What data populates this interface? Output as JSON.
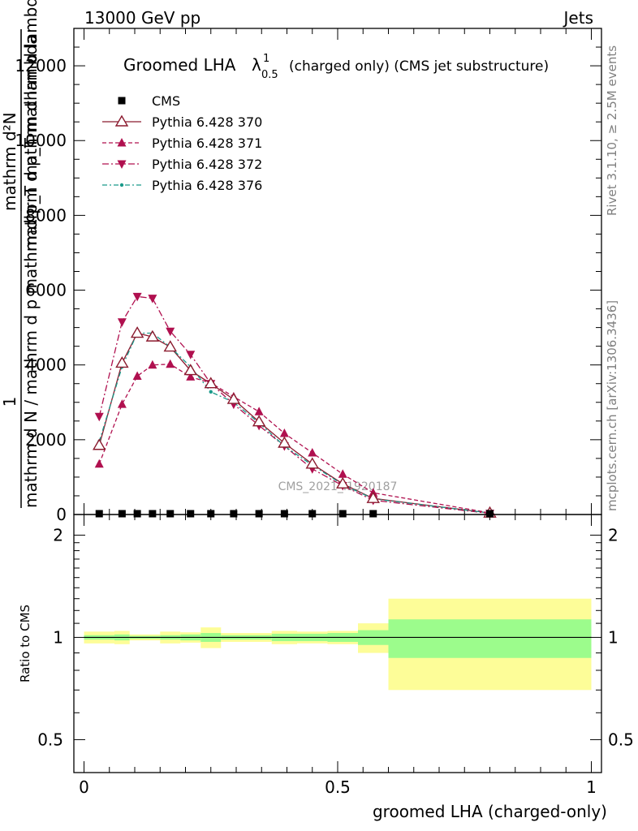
{
  "header": {
    "left": "13000 GeV pp",
    "right": "Jets"
  },
  "side_labels": {
    "top": "Rivet 3.1.10, ≥ 2.5M events",
    "bottom": "mcplots.cern.ch [arXiv:1306.3436]"
  },
  "title": {
    "main": "Groomed LHA",
    "symbol": "λ",
    "sup": "1",
    "sub": "0.5",
    "rest": "(charged only) (CMS jet substructure)"
  },
  "watermark": "CMS_2021_I1920187",
  "ylabel_main": {
    "numerator": "1",
    "denominator": "mathrm d N / mathrm d p mathrmd p_T mathrm d lambda",
    "frac_numerator": "mathrm d²N",
    "frac_denominator": "mathrm d p_T mathrm d lambda"
  },
  "ylabel_ratio": "Ratio to CMS",
  "xlabel": "groomed LHA (charged-only)",
  "colors": {
    "cms": "#000000",
    "p370": "#8b1a2e",
    "p371": "#b0104f",
    "p372": "#b0104f",
    "p376": "#1a9a8a",
    "band_inner": "#9cfc8c",
    "band_outer": "#fdfd98"
  },
  "chart_data": [
    {
      "type": "line",
      "panel": "main",
      "xlim": [
        -0.02,
        1.02
      ],
      "ylim": [
        0,
        13000
      ],
      "yticks": [
        0,
        2000,
        4000,
        6000,
        8000,
        10000,
        12000
      ],
      "ytick_labels": [
        "0",
        "2000",
        "4000",
        "6000",
        "8000",
        "10000",
        "12000"
      ],
      "legend_position": "top-left",
      "series": [
        {
          "name": "CMS",
          "marker": "square",
          "x": [
            0.03,
            0.075,
            0.105,
            0.135,
            0.17,
            0.21,
            0.25,
            0.295,
            0.345,
            0.395,
            0.45,
            0.51,
            0.57,
            0.8
          ],
          "y": [
            0,
            0,
            0,
            0,
            0,
            0,
            0,
            0,
            0,
            0,
            0,
            0,
            0,
            0
          ]
        },
        {
          "name": "Pythia 6.428 370",
          "marker": "open-triangle-up",
          "x": [
            0.03,
            0.075,
            0.105,
            0.135,
            0.17,
            0.21,
            0.25,
            0.295,
            0.345,
            0.395,
            0.45,
            0.51,
            0.57,
            0.8
          ],
          "y": [
            1850,
            4050,
            4850,
            4750,
            4480,
            3850,
            3500,
            3080,
            2480,
            1910,
            1350,
            820,
            430,
            40
          ]
        },
        {
          "name": "Pythia 6.428 371",
          "marker": "filled-triangle-up",
          "x": [
            0.03,
            0.075,
            0.105,
            0.135,
            0.17,
            0.21,
            0.25,
            0.295,
            0.345,
            0.395,
            0.45,
            0.51,
            0.57,
            0.8
          ],
          "y": [
            1350,
            2950,
            3700,
            4000,
            4020,
            3680,
            3520,
            3150,
            2750,
            2170,
            1650,
            1080,
            580,
            45
          ]
        },
        {
          "name": "Pythia 6.428 372",
          "marker": "filled-triangle-down",
          "x": [
            0.03,
            0.075,
            0.105,
            0.135,
            0.17,
            0.21,
            0.25,
            0.295,
            0.345,
            0.395,
            0.45,
            0.51,
            0.57,
            0.8
          ],
          "y": [
            2620,
            5150,
            5830,
            5780,
            4900,
            4280,
            3500,
            2950,
            2380,
            1830,
            1220,
            770,
            380,
            30
          ]
        },
        {
          "name": "Pythia 6.428 376",
          "marker": "small-dot",
          "x": [
            0.03,
            0.075,
            0.105,
            0.135,
            0.17,
            0.21,
            0.25,
            0.295,
            0.345,
            0.395,
            0.45,
            0.51,
            0.57,
            0.8
          ],
          "y": [
            1950,
            3950,
            4850,
            4850,
            4480,
            3950,
            3280,
            3000,
            2450,
            1830,
            1320,
            800,
            420,
            40
          ]
        }
      ]
    },
    {
      "type": "area",
      "panel": "ratio",
      "xlim": [
        -0.02,
        1.02
      ],
      "ylim": [
        0.4,
        2.3
      ],
      "yticks": [
        0.5,
        1,
        2
      ],
      "ytick_labels": [
        "0.5",
        "1",
        "2"
      ],
      "xticks": [
        0,
        0.5,
        1
      ],
      "xtick_labels": [
        "0",
        "0.5",
        "1"
      ],
      "reference_line": 1,
      "bins": [
        {
          "x0": 0.0,
          "x1": 0.06,
          "inner": [
            0.985,
            1.015
          ],
          "outer": [
            0.96,
            1.04
          ]
        },
        {
          "x0": 0.06,
          "x1": 0.09,
          "inner": [
            0.98,
            1.02
          ],
          "outer": [
            0.955,
            1.045
          ]
        },
        {
          "x0": 0.09,
          "x1": 0.12,
          "inner": [
            0.99,
            1.01
          ],
          "outer": [
            0.98,
            1.02
          ]
        },
        {
          "x0": 0.12,
          "x1": 0.15,
          "inner": [
            0.99,
            1.01
          ],
          "outer": [
            0.98,
            1.02
          ]
        },
        {
          "x0": 0.15,
          "x1": 0.19,
          "inner": [
            0.985,
            1.015
          ],
          "outer": [
            0.96,
            1.04
          ]
        },
        {
          "x0": 0.19,
          "x1": 0.23,
          "inner": [
            0.98,
            1.02
          ],
          "outer": [
            0.965,
            1.035
          ]
        },
        {
          "x0": 0.23,
          "x1": 0.27,
          "inner": [
            0.97,
            1.03
          ],
          "outer": [
            0.93,
            1.07
          ]
        },
        {
          "x0": 0.27,
          "x1": 0.32,
          "inner": [
            0.985,
            1.015
          ],
          "outer": [
            0.97,
            1.03
          ]
        },
        {
          "x0": 0.32,
          "x1": 0.37,
          "inner": [
            0.985,
            1.015
          ],
          "outer": [
            0.97,
            1.03
          ]
        },
        {
          "x0": 0.37,
          "x1": 0.42,
          "inner": [
            0.975,
            1.025
          ],
          "outer": [
            0.955,
            1.045
          ]
        },
        {
          "x0": 0.42,
          "x1": 0.48,
          "inner": [
            0.975,
            1.025
          ],
          "outer": [
            0.96,
            1.04
          ]
        },
        {
          "x0": 0.48,
          "x1": 0.54,
          "inner": [
            0.97,
            1.03
          ],
          "outer": [
            0.955,
            1.045
          ]
        },
        {
          "x0": 0.54,
          "x1": 0.6,
          "inner": [
            0.95,
            1.05
          ],
          "outer": [
            0.9,
            1.1
          ]
        },
        {
          "x0": 0.6,
          "x1": 1.0,
          "inner": [
            0.87,
            1.13
          ],
          "outer": [
            0.7,
            1.3
          ]
        }
      ]
    }
  ]
}
